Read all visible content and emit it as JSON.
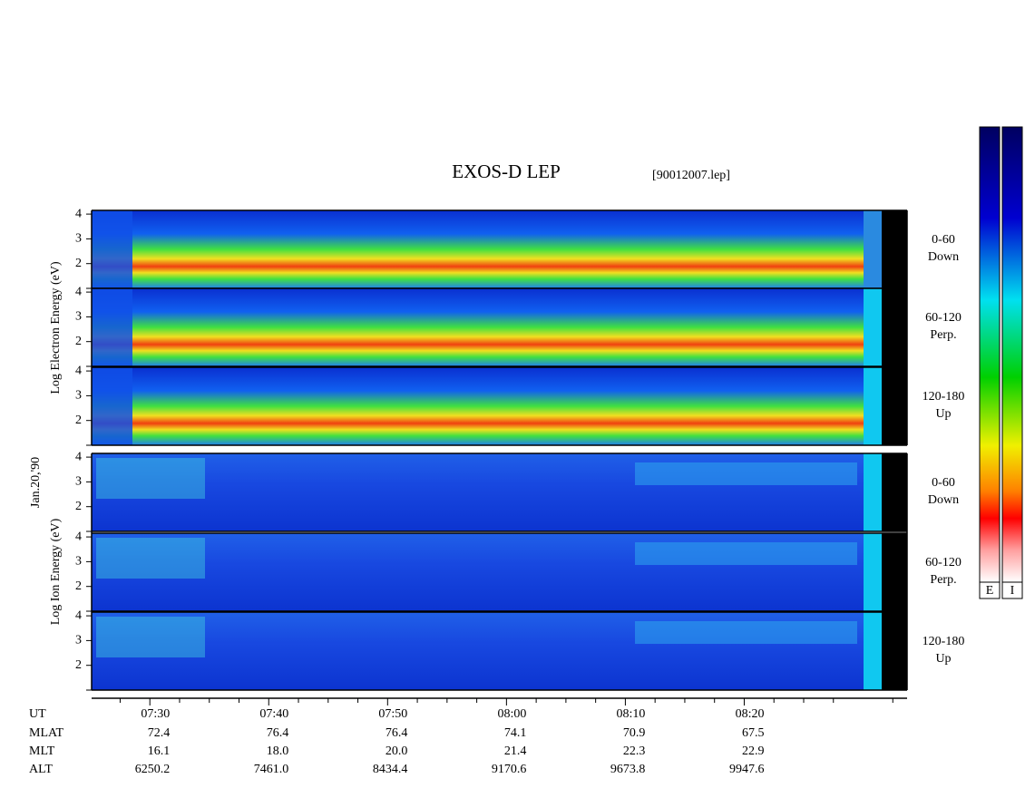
{
  "chart_data": {
    "type": "spectrogram",
    "title": "EXOS-D LEP",
    "file": "[90012007.lep]",
    "date_label": "Jan.20,'90",
    "ylim": [
      1,
      4.15
    ],
    "yticks": [
      2,
      3,
      4
    ],
    "xlim": [
      445.1,
      513.7
    ],
    "xticks": [
      {
        "value": 450,
        "label": "07:30"
      },
      {
        "value": 460,
        "label": "07:40"
      },
      {
        "value": 470,
        "label": "07:50"
      },
      {
        "value": 480,
        "label": "08:00"
      },
      {
        "value": 490,
        "label": "08:10"
      },
      {
        "value": 500,
        "label": "08:20"
      }
    ],
    "minor_xticks": [
      447.5,
      452.5,
      455,
      457.5,
      462.5,
      465,
      467.5,
      472.5,
      475,
      477.5,
      482.5,
      485,
      487.5,
      492.5,
      495,
      497.5,
      502.5,
      505,
      507.5,
      512.5
    ],
    "groups": [
      {
        "ylabel": "Log Electron Energy (eV)",
        "panels": [
          {
            "angle": "0-60",
            "direction": "Down"
          },
          {
            "angle": "60-120",
            "direction": "Perp."
          },
          {
            "angle": "120-180",
            "direction": "Up"
          }
        ]
      },
      {
        "ylabel": "Log Ion Energy (eV)",
        "panels": [
          {
            "angle": "0-60",
            "direction": "Down"
          },
          {
            "angle": "60-120",
            "direction": "Perp."
          },
          {
            "angle": "120-180",
            "direction": "Up"
          }
        ]
      }
    ],
    "orbit": {
      "first_label": "UT",
      "rows": [
        {
          "name": "MLAT",
          "values": [
            "72.4",
            "76.4",
            "76.4",
            "74.1",
            "70.9",
            "67.5"
          ]
        },
        {
          "name": "MLT",
          "values": [
            "16.1",
            "18.0",
            "20.0",
            "21.4",
            "22.3",
            "22.9"
          ]
        },
        {
          "name": "ALT",
          "values": [
            "6250.2",
            "7461.0",
            "8434.4",
            "9170.6",
            "9673.8",
            "9947.6"
          ]
        }
      ]
    },
    "colorbars": [
      "E",
      "I"
    ]
  }
}
